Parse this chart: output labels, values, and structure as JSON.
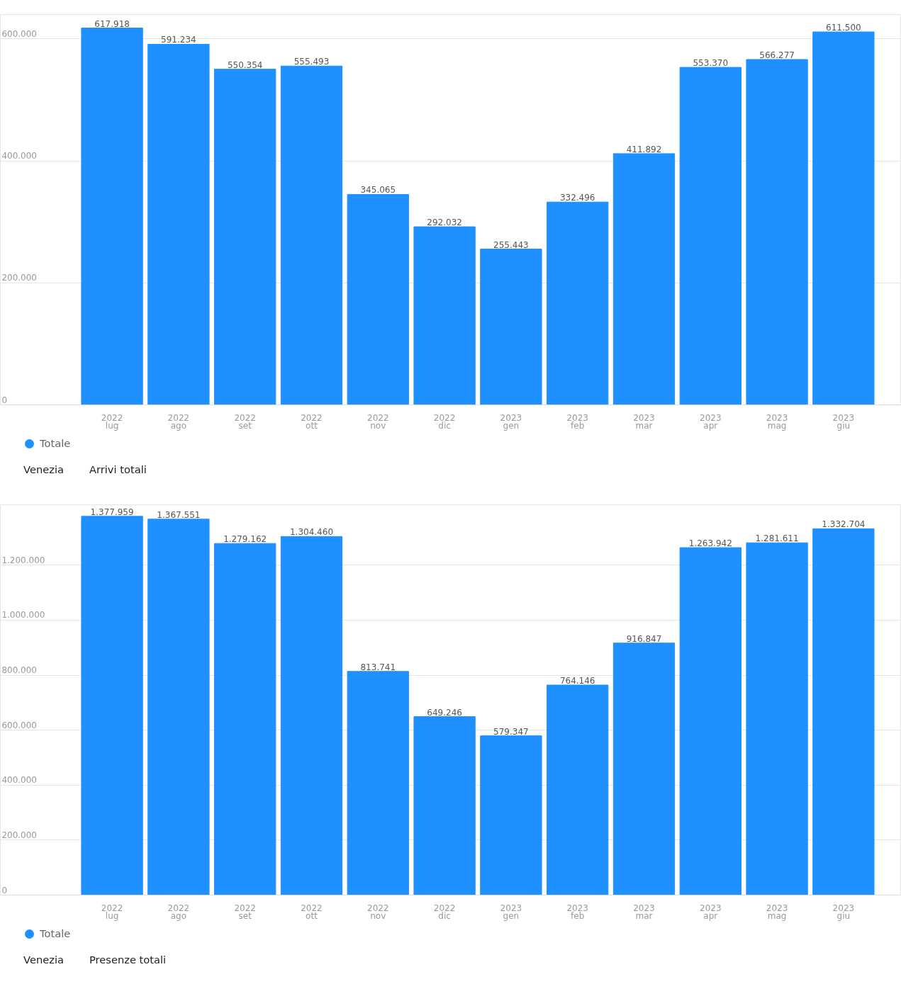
{
  "chart_data": [
    {
      "type": "bar",
      "categories": [
        "2022\nlug",
        "2022\nago",
        "2022\nset",
        "2022\nott",
        "2022\nnov",
        "2022\ndic",
        "2023\ngen",
        "2023\nfeb",
        "2023\nmar",
        "2023\napr",
        "2023\nmag",
        "2023\ngiu"
      ],
      "series": [
        {
          "name": "Totale",
          "color": "#1e90ff",
          "values": [
            617918,
            591234,
            550354,
            555493,
            345065,
            292032,
            255443,
            332496,
            411892,
            553370,
            566277,
            611500
          ],
          "value_labels": [
            "617.918",
            "591.234",
            "550.354",
            "555.493",
            "345.065",
            "292.032",
            "255.443",
            "332.496",
            "411.892",
            "553.370",
            "566.277",
            "611.500"
          ]
        }
      ],
      "yticks": [
        {
          "value": 0,
          "label": "0"
        },
        {
          "value": 200000,
          "label": "200.000"
        },
        {
          "value": 400000,
          "label": "400.000"
        },
        {
          "value": 600000,
          "label": "600.000"
        }
      ],
      "ylim": [
        0,
        640000
      ],
      "grid": "y",
      "legend": "bottom left",
      "annotations": [
        "Venezia",
        "Arrivi totali"
      ]
    },
    {
      "type": "bar",
      "categories": [
        "2022\nlug",
        "2022\nago",
        "2022\nset",
        "2022\nott",
        "2022\nnov",
        "2022\ndic",
        "2023\ngen",
        "2023\nfeb",
        "2023\nmar",
        "2023\napr",
        "2023\nmag",
        "2023\ngiu"
      ],
      "series": [
        {
          "name": "Totale",
          "color": "#1e90ff",
          "values": [
            1377959,
            1367551,
            1279162,
            1304460,
            813741,
            649246,
            579347,
            764146,
            916847,
            1263942,
            1281611,
            1332704
          ],
          "value_labels": [
            "1.377.959",
            "1.367.551",
            "1.279.162",
            "1.304.460",
            "813.741",
            "649.246",
            "579.347",
            "764.146",
            "916.847",
            "1.263.942",
            "1.281.611",
            "1.332.704"
          ]
        }
      ],
      "yticks": [
        {
          "value": 0,
          "label": "0"
        },
        {
          "value": 200000,
          "label": "200.000"
        },
        {
          "value": 400000,
          "label": "400.000"
        },
        {
          "value": 600000,
          "label": "600.000"
        },
        {
          "value": 800000,
          "label": "800.000"
        },
        {
          "value": 1000000,
          "label": "1.000.000"
        },
        {
          "value": 1200000,
          "label": "1.200.000"
        }
      ],
      "ylim": [
        0,
        1420000
      ],
      "grid": "y",
      "legend": "bottom left",
      "annotations": [
        "Venezia",
        "Presenze totali"
      ]
    }
  ]
}
